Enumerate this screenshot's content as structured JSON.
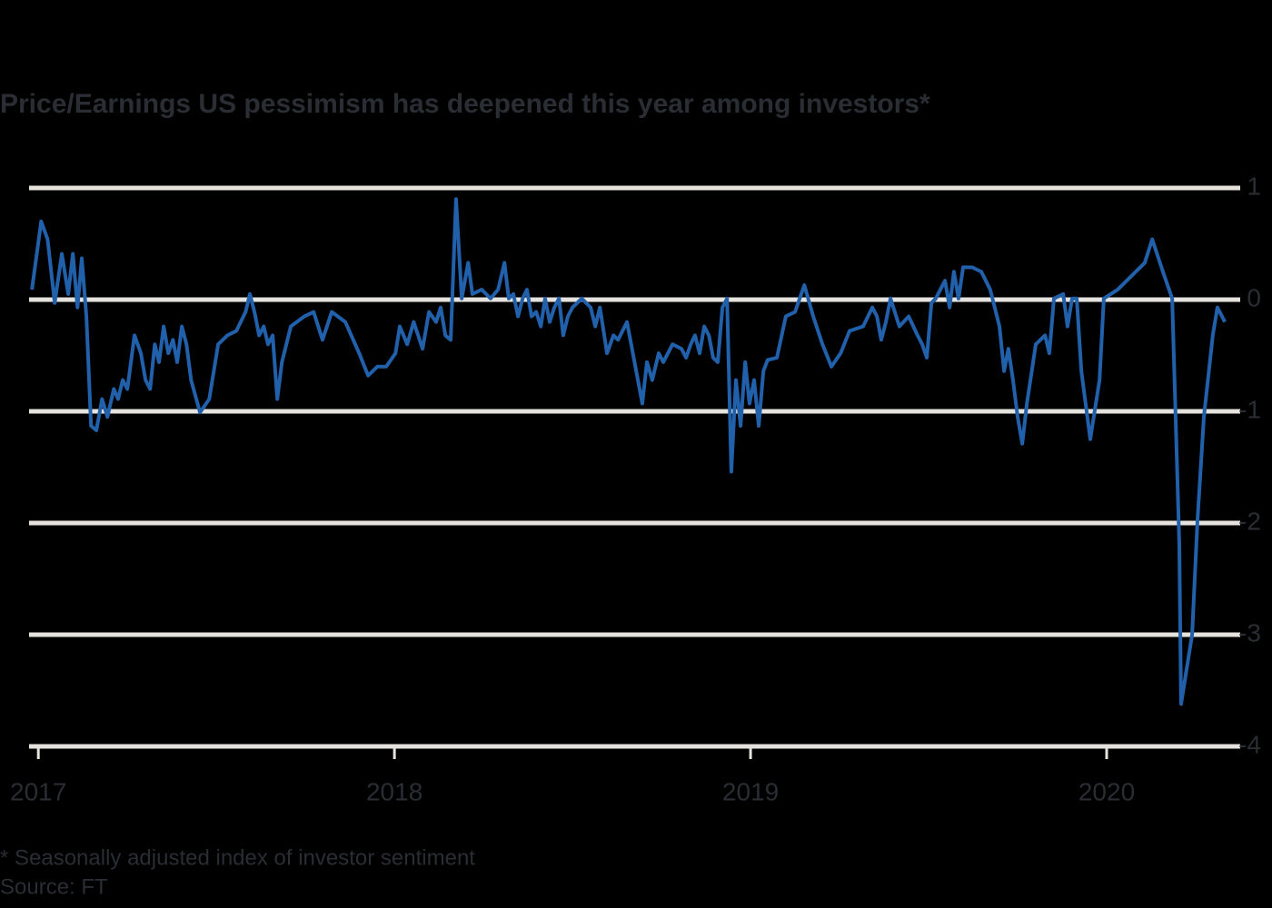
{
  "chart_data": {
    "type": "line",
    "title": "Price/Earnings US pessimism has deepened this year among investors*",
    "footnote": "* Seasonally adjusted index of investor sentiment",
    "source": "Source: FT",
    "xlim": [
      2016.974,
      2020.375
    ],
    "xticks": [
      2017,
      2018,
      2019,
      2020
    ],
    "ylim": [
      -4,
      1
    ],
    "yticks": [
      1,
      0,
      -1,
      -2,
      -3,
      -4
    ],
    "grid": true,
    "x": [
      2016.982,
      2017.008,
      2017.026,
      2017.046,
      2017.066,
      2017.084,
      2017.097,
      2017.11,
      2017.122,
      2017.135,
      2017.148,
      2017.163,
      2017.179,
      2017.194,
      2017.212,
      2017.224,
      2017.237,
      2017.25,
      2017.27,
      2017.288,
      2017.301,
      2017.314,
      2017.327,
      2017.339,
      2017.352,
      2017.365,
      2017.378,
      2017.39,
      2017.403,
      2017.416,
      2017.429,
      2017.454,
      2017.48,
      2017.505,
      2017.531,
      2017.556,
      2017.582,
      2017.594,
      2017.607,
      2017.62,
      2017.633,
      2017.645,
      2017.658,
      2017.671,
      2017.684,
      2017.709,
      2017.747,
      2017.773,
      2017.798,
      2017.824,
      2017.862,
      2017.901,
      2017.926,
      2017.952,
      2017.977,
      2018.003,
      2018.015,
      2018.036,
      2018.054,
      2018.079,
      2018.097,
      2018.117,
      2018.13,
      2018.143,
      2018.158,
      2018.173,
      2018.189,
      2018.207,
      2018.219,
      2018.245,
      2018.27,
      2018.291,
      2018.309,
      2018.321,
      2018.334,
      2018.347,
      2018.36,
      2018.372,
      2018.385,
      2018.398,
      2018.411,
      2018.423,
      2018.436,
      2018.449,
      2018.462,
      2018.474,
      2018.487,
      2018.5,
      2018.526,
      2018.551,
      2018.564,
      2018.577,
      2018.597,
      2018.615,
      2018.628,
      2018.653,
      2018.679,
      2018.696,
      2018.709,
      2018.724,
      2018.742,
      2018.755,
      2018.781,
      2018.806,
      2018.819,
      2018.832,
      2018.844,
      2018.857,
      2018.87,
      2018.883,
      2018.895,
      2018.908,
      2018.921,
      2018.934,
      2018.946,
      2018.959,
      2018.972,
      2018.985,
      2018.997,
      2019.01,
      2019.023,
      2019.036,
      2019.048,
      2019.074,
      2019.099,
      2019.125,
      2019.151,
      2019.176,
      2019.202,
      2019.227,
      2019.253,
      2019.278,
      2019.316,
      2019.342,
      2019.355,
      2019.367,
      2019.38,
      2019.393,
      2019.418,
      2019.444,
      2019.469,
      2019.482,
      2019.495,
      2019.508,
      2019.52,
      2019.546,
      2019.559,
      2019.571,
      2019.584,
      2019.597,
      2019.622,
      2019.648,
      2019.673,
      2019.699,
      2019.712,
      2019.724,
      2019.737,
      2019.75,
      2019.763,
      2019.776,
      2019.801,
      2019.827,
      2019.839,
      2019.852,
      2019.878,
      2019.89,
      2019.903,
      2019.916,
      2019.929,
      2019.954,
      2019.98,
      2019.992,
      2020.031,
      2020.069,
      2020.107,
      2020.128,
      2020.158,
      2020.184,
      2020.204,
      2020.209,
      2020.24,
      2020.255,
      2020.273,
      2020.298,
      2020.311,
      2020.332
    ],
    "series": [
      {
        "color": "#2160aa",
        "values": [
          0.09,
          0.7,
          0.54,
          -0.03,
          0.41,
          0.05,
          0.41,
          -0.07,
          0.37,
          -0.15,
          -1.13,
          -1.17,
          -0.89,
          -1.05,
          -0.8,
          -0.89,
          -0.72,
          -0.8,
          -0.32,
          -0.48,
          -0.72,
          -0.8,
          -0.4,
          -0.56,
          -0.24,
          -0.48,
          -0.36,
          -0.56,
          -0.24,
          -0.4,
          -0.72,
          -1.01,
          -0.89,
          -0.4,
          -0.32,
          -0.28,
          -0.11,
          0.05,
          -0.11,
          -0.32,
          -0.24,
          -0.4,
          -0.32,
          -0.89,
          -0.56,
          -0.24,
          -0.15,
          -0.11,
          -0.36,
          -0.11,
          -0.2,
          -0.48,
          -0.68,
          -0.6,
          -0.6,
          -0.48,
          -0.24,
          -0.4,
          -0.2,
          -0.44,
          -0.11,
          -0.2,
          -0.07,
          -0.32,
          -0.36,
          0.9,
          0.01,
          0.33,
          0.05,
          0.09,
          0.01,
          0.09,
          0.33,
          0.01,
          0.05,
          -0.15,
          0.01,
          0.09,
          -0.15,
          -0.11,
          -0.24,
          0.01,
          -0.2,
          -0.07,
          0.01,
          -0.32,
          -0.15,
          -0.07,
          0.01,
          -0.07,
          -0.24,
          -0.07,
          -0.48,
          -0.32,
          -0.36,
          -0.2,
          -0.64,
          -0.93,
          -0.56,
          -0.72,
          -0.48,
          -0.56,
          -0.4,
          -0.44,
          -0.52,
          -0.4,
          -0.32,
          -0.48,
          -0.24,
          -0.32,
          -0.52,
          -0.56,
          -0.07,
          0.01,
          -1.54,
          -0.72,
          -1.13,
          -0.56,
          -0.93,
          -0.72,
          -1.13,
          -0.64,
          -0.54,
          -0.52,
          -0.15,
          -0.11,
          0.13,
          -0.15,
          -0.4,
          -0.6,
          -0.48,
          -0.28,
          -0.24,
          -0.07,
          -0.15,
          -0.36,
          -0.2,
          0.01,
          -0.24,
          -0.15,
          -0.32,
          -0.4,
          -0.52,
          -0.03,
          0.01,
          0.17,
          -0.07,
          0.25,
          0.01,
          0.29,
          0.29,
          0.25,
          0.09,
          -0.24,
          -0.64,
          -0.44,
          -0.72,
          -1.05,
          -1.29,
          -0.93,
          -0.4,
          -0.32,
          -0.48,
          0.01,
          0.05,
          -0.24,
          0.01,
          0.01,
          -0.64,
          -1.25,
          -0.72,
          0.01,
          0.09,
          0.21,
          0.33,
          0.54,
          0.25,
          0.01,
          -2.19,
          -3.62,
          -3.0,
          -1.98,
          -1.05,
          -0.32,
          -0.07,
          -0.2
        ]
      }
    ]
  }
}
